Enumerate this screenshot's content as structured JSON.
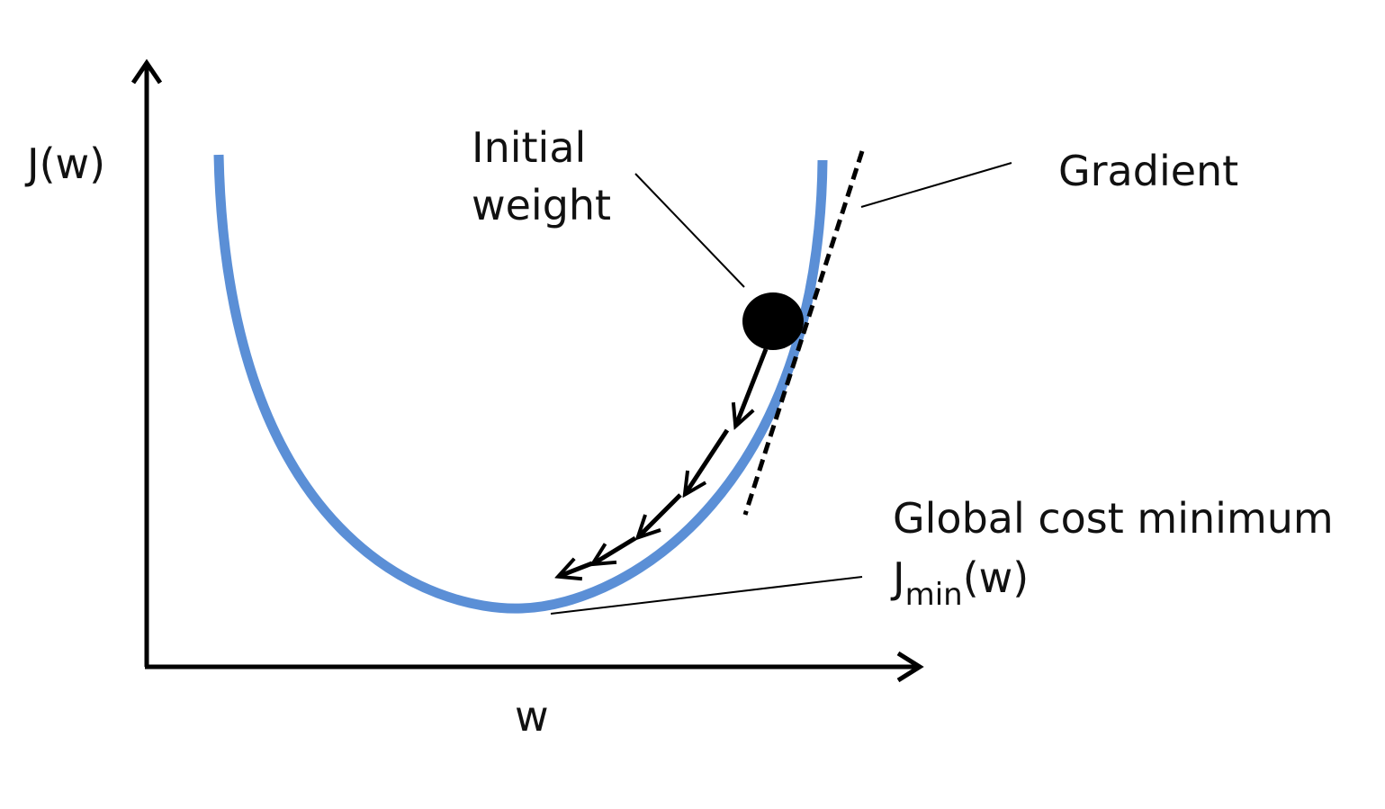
{
  "axes": {
    "y_label": "J(w)",
    "x_label": "w"
  },
  "annotations": {
    "initial_weight_line1": "Initial",
    "initial_weight_line2": "weight",
    "gradient": "Gradient",
    "global_min": "Global cost minimum",
    "jmin_base": "J",
    "jmin_sub": "min",
    "jmin_arg": "(w)"
  },
  "colors": {
    "curve": "#5b8fd6",
    "ink": "#000000"
  }
}
